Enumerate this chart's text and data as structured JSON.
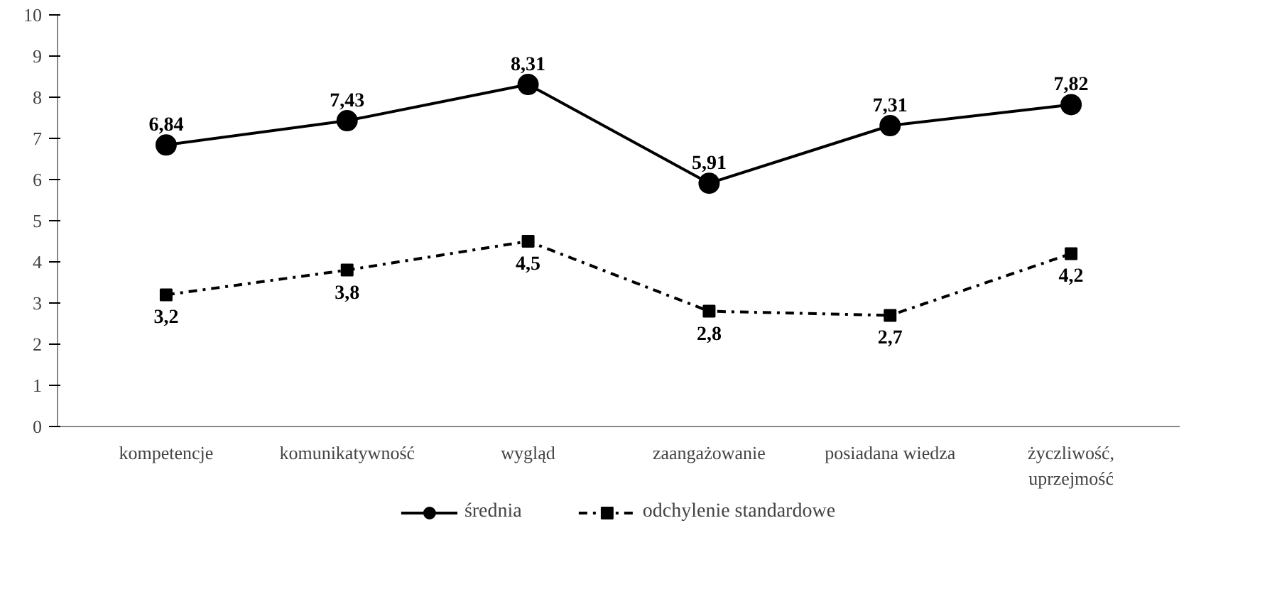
{
  "chart_data": {
    "type": "line",
    "categories": [
      "kompetencje",
      "komunikatywność",
      "wygląd",
      "zaangażowanie",
      "posiadana wiedza",
      "życzliwość, uprzejmość"
    ],
    "series": [
      {
        "name": "średnia",
        "color": "#000000",
        "marker": "circle",
        "line_style": "solid",
        "values": [
          6.84,
          7.43,
          8.31,
          5.91,
          7.31,
          7.82
        ],
        "value_labels": [
          "6,84",
          "7,43",
          "8,31",
          "5,91",
          "7,31",
          "7,82"
        ]
      },
      {
        "name": "odchylenie standardowe",
        "color": "#000000",
        "marker": "square",
        "line_style": "dashdot",
        "values": [
          3.2,
          3.8,
          4.5,
          2.8,
          2.7,
          4.2
        ],
        "value_labels": [
          "3,2",
          "3,8",
          "4,5",
          "2,8",
          "2,7",
          "4,2"
        ]
      }
    ],
    "ylim": [
      0,
      10
    ],
    "yticks": [
      0,
      1,
      2,
      3,
      4,
      5,
      6,
      7,
      8,
      9,
      10
    ],
    "grid": false,
    "legend": "bottom"
  }
}
